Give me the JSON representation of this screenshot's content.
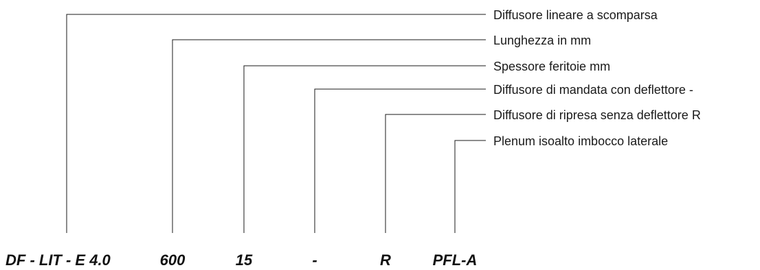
{
  "code": {
    "model": "DF - LIT - E 4.0",
    "length": "600",
    "slot_thickness": "15",
    "supply": "-",
    "return": "R",
    "plenum": "PFL-A"
  },
  "descriptions": {
    "model": "Diffusore lineare a scomparsa",
    "length": "Lunghezza in mm",
    "slot_thickness": "Spessore feritoie mm",
    "supply": "Diffusore di mandata con deflettore -",
    "return": "Diffusore di ripresa senza deflettore R",
    "plenum": "Plenum isoalto imbocco laterale"
  },
  "colors": {
    "line": "#1a1a1a",
    "text": "#1a1a1a",
    "background": "#ffffff"
  }
}
